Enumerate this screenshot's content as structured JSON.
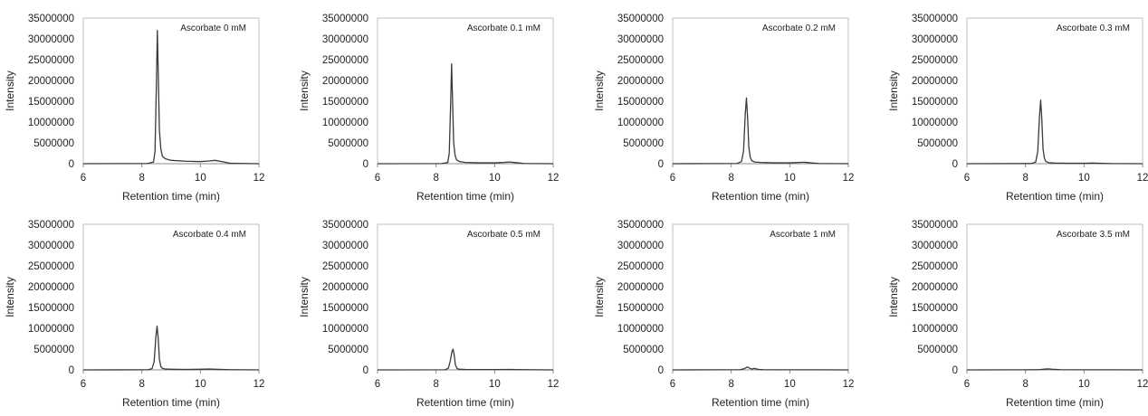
{
  "chart_data": [
    {
      "type": "line",
      "annotation": "Ascorbate 0 mM",
      "xlabel": "Retention time (min)",
      "ylabel": "Intensity",
      "xlim": [
        6,
        12
      ],
      "ylim": [
        0,
        35000000
      ],
      "xticks": [
        "6",
        "8",
        "10",
        "12"
      ],
      "yticks": [
        "0",
        "5000000",
        "10000000",
        "15000000",
        "20000000",
        "25000000",
        "30000000",
        "35000000"
      ],
      "grid": false,
      "series": [
        {
          "x": [
            6,
            8.2,
            8.4,
            8.45,
            8.5,
            8.53,
            8.56,
            8.6,
            8.65,
            8.7,
            8.8,
            9.0,
            9.5,
            10.0,
            10.3,
            10.5,
            10.8,
            11.0,
            12
          ],
          "y": [
            0,
            50000,
            400000,
            3000000,
            20000000,
            32000000,
            22000000,
            8000000,
            3500000,
            1800000,
            1200000,
            800000,
            600000,
            500000,
            650000,
            800000,
            400000,
            100000,
            0
          ]
        }
      ]
    },
    {
      "type": "line",
      "annotation": "Ascorbate 0.1 mM",
      "xlabel": "Retention time (min)",
      "ylabel": "Intensity",
      "xlim": [
        6,
        12
      ],
      "ylim": [
        0,
        35000000
      ],
      "xticks": [
        "6",
        "8",
        "10",
        "12"
      ],
      "yticks": [
        "0",
        "5000000",
        "10000000",
        "15000000",
        "20000000",
        "25000000",
        "30000000",
        "35000000"
      ],
      "grid": false,
      "series": [
        {
          "x": [
            6,
            8.2,
            8.4,
            8.45,
            8.5,
            8.53,
            8.56,
            8.6,
            8.65,
            8.7,
            8.8,
            9.0,
            9.5,
            10.0,
            10.3,
            10.5,
            10.8,
            11.0,
            12
          ],
          "y": [
            0,
            30000,
            300000,
            2500000,
            15000000,
            24000000,
            16000000,
            5000000,
            2000000,
            900000,
            500000,
            300000,
            200000,
            200000,
            300000,
            400000,
            200000,
            50000,
            0
          ]
        }
      ]
    },
    {
      "type": "line",
      "annotation": "Ascorbate 0.2 mM",
      "xlabel": "Retention time (min)",
      "ylabel": "Intensity",
      "xlim": [
        6,
        12
      ],
      "ylim": [
        0,
        35000000
      ],
      "xticks": [
        "6",
        "8",
        "10",
        "12"
      ],
      "yticks": [
        "0",
        "5000000",
        "10000000",
        "15000000",
        "20000000",
        "25000000",
        "30000000",
        "35000000"
      ],
      "grid": false,
      "series": [
        {
          "x": [
            6,
            8.2,
            8.35,
            8.42,
            8.48,
            8.52,
            8.56,
            8.6,
            8.65,
            8.7,
            8.8,
            9.0,
            9.5,
            10.0,
            10.3,
            10.5,
            10.8,
            11.0,
            12
          ],
          "y": [
            0,
            50000,
            500000,
            3000000,
            12000000,
            15800000,
            11000000,
            4000000,
            1500000,
            700000,
            400000,
            300000,
            200000,
            200000,
            300000,
            350000,
            150000,
            50000,
            0
          ]
        }
      ]
    },
    {
      "type": "line",
      "annotation": "Ascorbate 0.3 mM",
      "xlabel": "Retention time (min)",
      "ylabel": "Intensity",
      "xlim": [
        6,
        12
      ],
      "ylim": [
        0,
        35000000
      ],
      "xticks": [
        "6",
        "8",
        "10",
        "12"
      ],
      "yticks": [
        "0",
        "5000000",
        "10000000",
        "15000000",
        "20000000",
        "25000000",
        "30000000",
        "35000000"
      ],
      "grid": false,
      "series": [
        {
          "x": [
            6,
            8.2,
            8.35,
            8.42,
            8.48,
            8.52,
            8.56,
            8.6,
            8.65,
            8.7,
            8.8,
            9.0,
            9.5,
            10.0,
            10.3,
            10.5,
            11.0,
            12
          ],
          "y": [
            0,
            40000,
            400000,
            3000000,
            11500000,
            15300000,
            10500000,
            3500000,
            1200000,
            500000,
            250000,
            150000,
            100000,
            100000,
            150000,
            100000,
            30000,
            0
          ]
        }
      ]
    },
    {
      "type": "line",
      "annotation": "Ascorbate 0.4 mM",
      "xlabel": "Retention time (min)",
      "ylabel": "Intensity",
      "xlim": [
        6,
        12
      ],
      "ylim": [
        0,
        35000000
      ],
      "xticks": [
        "6",
        "8",
        "10",
        "12"
      ],
      "yticks": [
        "0",
        "5000000",
        "10000000",
        "15000000",
        "20000000",
        "25000000",
        "30000000",
        "35000000"
      ],
      "grid": false,
      "series": [
        {
          "x": [
            6,
            8.2,
            8.35,
            8.42,
            8.48,
            8.52,
            8.56,
            8.6,
            8.65,
            8.7,
            8.8,
            9.0,
            9.5,
            10.0,
            10.3,
            10.5,
            11.0,
            12
          ],
          "y": [
            0,
            30000,
            300000,
            2000000,
            8000000,
            10500000,
            7500000,
            2500000,
            800000,
            400000,
            200000,
            150000,
            100000,
            150000,
            200000,
            150000,
            50000,
            0
          ]
        }
      ]
    },
    {
      "type": "line",
      "annotation": "Ascorbate 0.5 mM",
      "xlabel": "Retention time (min)",
      "ylabel": "Intensity",
      "xlim": [
        6,
        12
      ],
      "ylim": [
        0,
        35000000
      ],
      "xticks": [
        "6",
        "8",
        "10",
        "12"
      ],
      "yticks": [
        "0",
        "5000000",
        "10000000",
        "15000000",
        "20000000",
        "25000000",
        "30000000",
        "35000000"
      ],
      "grid": false,
      "series": [
        {
          "x": [
            6,
            8.3,
            8.42,
            8.48,
            8.54,
            8.58,
            8.62,
            8.66,
            8.72,
            8.8,
            9.0,
            9.5,
            10.0,
            10.5,
            11.0,
            12
          ],
          "y": [
            0,
            30000,
            400000,
            2000000,
            4300000,
            5000000,
            3500000,
            1200000,
            300000,
            150000,
            100000,
            80000,
            80000,
            100000,
            50000,
            0
          ]
        }
      ]
    },
    {
      "type": "line",
      "annotation": "Ascorbate 1 mM",
      "xlabel": "Retention time (min)",
      "ylabel": "Intensity",
      "xlim": [
        6,
        12
      ],
      "ylim": [
        0,
        35000000
      ],
      "xticks": [
        "6",
        "8",
        "10",
        "12"
      ],
      "yticks": [
        "0",
        "5000000",
        "10000000",
        "15000000",
        "20000000",
        "25000000",
        "30000000",
        "35000000"
      ],
      "grid": false,
      "series": [
        {
          "x": [
            6,
            8.3,
            8.45,
            8.55,
            8.62,
            8.7,
            8.78,
            8.85,
            8.95,
            9.1,
            9.5,
            10.0,
            11.0,
            12
          ],
          "y": [
            0,
            50000,
            300000,
            700000,
            450000,
            200000,
            350000,
            250000,
            100000,
            50000,
            30000,
            30000,
            20000,
            0
          ]
        }
      ]
    },
    {
      "type": "line",
      "annotation": "Ascorbate 3.5 mM",
      "xlabel": "Retention time (min)",
      "ylabel": "Intensity",
      "xlim": [
        6,
        12
      ],
      "ylim": [
        0,
        35000000
      ],
      "xticks": [
        "6",
        "8",
        "10",
        "12"
      ],
      "yticks": [
        "0",
        "5000000",
        "10000000",
        "15000000",
        "20000000",
        "25000000",
        "30000000",
        "35000000"
      ],
      "grid": false,
      "series": [
        {
          "x": [
            6,
            8.0,
            8.5,
            8.7,
            8.8,
            8.9,
            9.2,
            10.0,
            11.0,
            12
          ],
          "y": [
            0,
            20000,
            80000,
            200000,
            250000,
            150000,
            60000,
            30000,
            20000,
            0
          ]
        }
      ]
    }
  ]
}
